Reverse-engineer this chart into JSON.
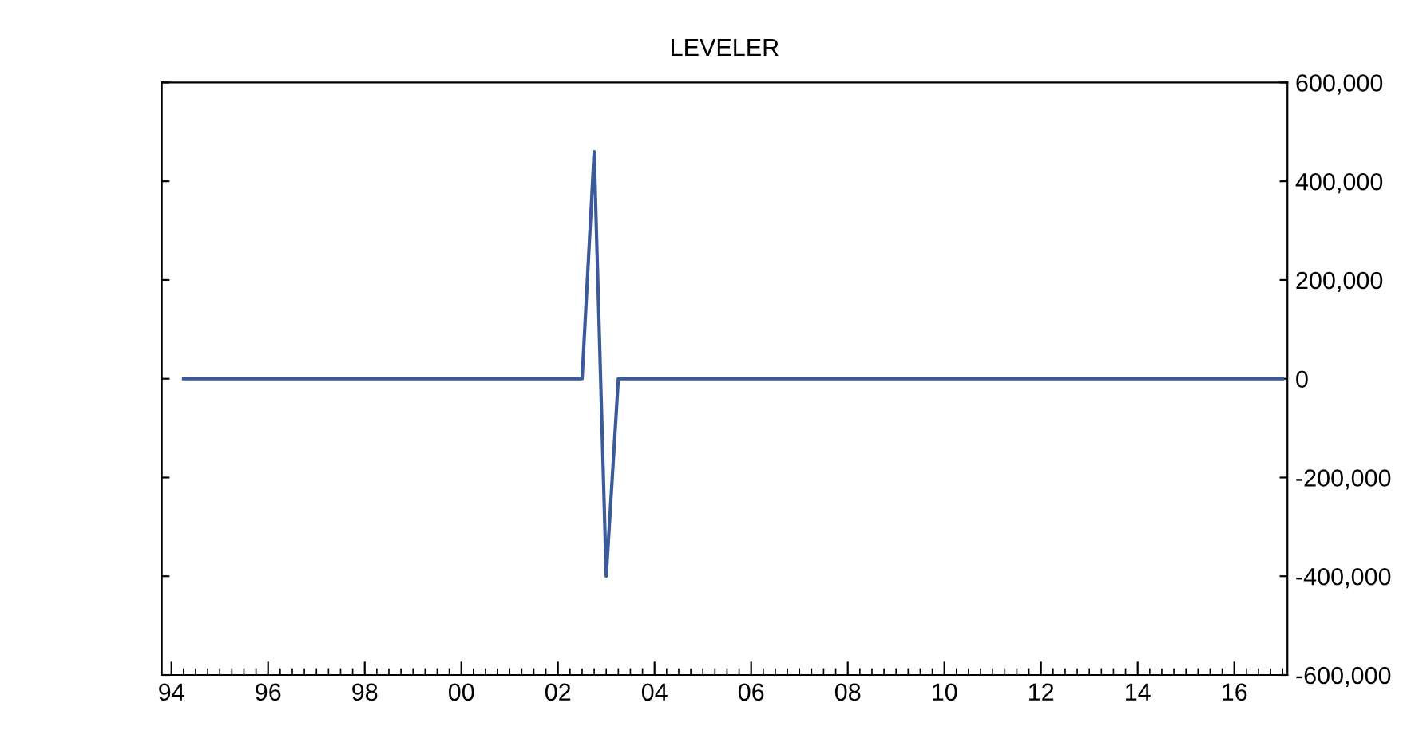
{
  "chart_data": {
    "type": "line",
    "title": "LEVELER",
    "x": [
      1994.25,
      2002.5,
      2002.75,
      2003.0,
      2003.25,
      2017.0
    ],
    "series": [
      {
        "color": "#3b5a9a",
        "values": [
          0,
          0,
          460000,
          -400000,
          0,
          0
        ]
      }
    ],
    "xlim": [
      1993.8,
      2017.1
    ],
    "xticks": [
      {
        "value": 1994,
        "label": "94"
      },
      {
        "value": 1996,
        "label": "96"
      },
      {
        "value": 1998,
        "label": "98"
      },
      {
        "value": 2000,
        "label": "00"
      },
      {
        "value": 2002,
        "label": "02"
      },
      {
        "value": 2004,
        "label": "04"
      },
      {
        "value": 2006,
        "label": "06"
      },
      {
        "value": 2008,
        "label": "08"
      },
      {
        "value": 2010,
        "label": "10"
      },
      {
        "value": 2012,
        "label": "12"
      },
      {
        "value": 2014,
        "label": "14"
      },
      {
        "value": 2016,
        "label": "16"
      }
    ],
    "ylim": [
      -600000,
      600000
    ],
    "yticks": [
      {
        "value": -600000,
        "label": "-600,000"
      },
      {
        "value": -400000,
        "label": "-400,000"
      },
      {
        "value": -200000,
        "label": "-200,000"
      },
      {
        "value": 0,
        "label": "0"
      },
      {
        "value": 200000,
        "label": "200,000"
      },
      {
        "value": 400000,
        "label": "400,000"
      },
      {
        "value": 600000,
        "label": "600,000"
      }
    ],
    "grid": false,
    "legend": false,
    "line_style": "solid",
    "marker": "none"
  }
}
